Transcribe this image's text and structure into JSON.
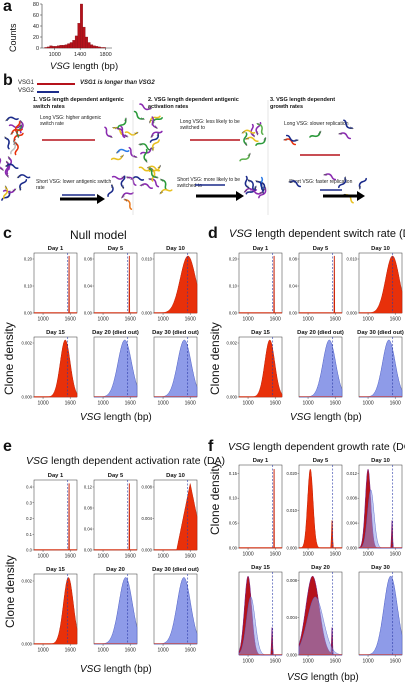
{
  "panels": {
    "a": {
      "letter": "a",
      "ylabel": "Counts",
      "xlabel_italic": "VSG",
      "xlabel_rest": " length (bp)"
    },
    "b": {
      "letter": "b",
      "legend1": "VSG1",
      "legend2": "VSG2",
      "legend_note": "VSG1 is longer than VSG2",
      "step1_title": "1. VSG length dependent antigenic switch rates",
      "step1_top": "Long VSG: higher antigenic switch rate",
      "step1_bottom": "Short VSG: lower antigenic switch rate",
      "step2_title": "2. VSG length dependent antigenic activation rates",
      "step2_top": "Long VSG: less likely to be switched to",
      "step2_bottom": "Short VSG: more likely to be switched to",
      "step3_title": "3. VSG length dependent growth rates",
      "step3_top": "Long VSG: slower replication",
      "step3_bottom": "Short VSG: faster replication"
    },
    "c": {
      "letter": "c",
      "title": "Null model"
    },
    "d": {
      "letter": "d",
      "title_italic": "VSG",
      "title_rest": " length dependent switch rate (DS)"
    },
    "e": {
      "letter": "e",
      "title_italic": "VSG",
      "title_rest": " length dependent activation rate (DA)"
    },
    "f": {
      "letter": "f",
      "title_italic": "VSG",
      "title_rest": " length dependent growth rate (DG)"
    },
    "common": {
      "ylabel": "Clone density",
      "xlabel_italic": "VSG",
      "xlabel_rest": " length (bp)"
    }
  },
  "colors": {
    "red": "#e8300a",
    "darkred": "#b5121b",
    "blue": "#8e9be8",
    "blue_edge": "#4a5bc4",
    "navy": "#1a2a8a",
    "purple": "#6b1a8a"
  },
  "chart_data": [
    {
      "panel": "a",
      "type": "bar",
      "title": "",
      "xlabel": "VSG length (bp)",
      "ylabel": "Counts",
      "x_ticks": [
        1000,
        1400,
        1800
      ],
      "y_ticks": [
        0,
        20,
        40,
        60,
        80
      ],
      "xlim": [
        800,
        1900
      ],
      "ylim": [
        0,
        80
      ],
      "bin_width": 40,
      "bins_start": [
        840,
        880,
        920,
        960,
        1000,
        1040,
        1080,
        1120,
        1160,
        1200,
        1240,
        1280,
        1320,
        1360,
        1400,
        1440,
        1480,
        1520,
        1560,
        1600,
        1640,
        1680,
        1720,
        1760
      ],
      "values": [
        1,
        2,
        4,
        3,
        3,
        4,
        5,
        5,
        6,
        8,
        10,
        14,
        22,
        45,
        80,
        38,
        20,
        10,
        6,
        4,
        3,
        2,
        1,
        1
      ]
    },
    {
      "panel": "c",
      "type": "area",
      "title": "Null model",
      "ylabel": "Clone density",
      "xlabel": "VSG length (bp)",
      "subplots": [
        {
          "label": "Day 1",
          "color": "red",
          "kind": "spike",
          "center": 1575,
          "ylim": [
            0,
            0.2
          ],
          "yticks": [
            "0.00",
            "0.10",
            "0.20"
          ],
          "dash_x": 1545
        },
        {
          "label": "Day 5",
          "color": "red",
          "kind": "spike",
          "center": 1580,
          "ylim": [
            0,
            0.08
          ],
          "yticks": [
            "0.00",
            "0.04",
            "0.08"
          ],
          "dash_x": 1545
        },
        {
          "label": "Day 10",
          "color": "red",
          "kind": "bell",
          "center": 1550,
          "width": 170,
          "ylim": [
            0,
            0.012
          ],
          "yticks": [
            "0.000",
            "0.010"
          ],
          "dash_x": 1545
        },
        {
          "label": "Day 15",
          "color": "red",
          "kind": "bell",
          "center": 1490,
          "width": 110,
          "ylim": [
            0,
            0.0035
          ],
          "yticks": [
            "0.000",
            "0.002"
          ],
          "dash_x": 1545
        },
        {
          "label": "Day 20 (died out)",
          "color": "blue",
          "kind": "bell",
          "center": 1480,
          "width": 150,
          "ylim": [
            0,
            0.0035
          ],
          "yticks": [],
          "dash_x": 1545
        },
        {
          "label": "Day 30 (died out)",
          "color": "blue",
          "kind": "bell",
          "center": 1470,
          "width": 150,
          "ylim": [
            0,
            0.0035
          ],
          "yticks": [],
          "dash_x": 1545
        }
      ]
    },
    {
      "panel": "d",
      "type": "area",
      "title": "VSG length dependent switch rate (DS)",
      "ylabel": "Clone density",
      "xlabel": "VSG length (bp)",
      "subplots": [
        {
          "label": "Day 1",
          "color": "red",
          "kind": "spike",
          "center": 1575,
          "ylim": [
            0,
            0.2
          ],
          "yticks": [
            "0.00",
            "0.10",
            "0.20"
          ],
          "dash_x": 1545
        },
        {
          "label": "Day 5",
          "color": "red",
          "kind": "spike",
          "center": 1580,
          "ylim": [
            0,
            0.08
          ],
          "yticks": [
            "0.00",
            "0.04",
            "0.08"
          ],
          "dash_x": 1545
        },
        {
          "label": "Day 10",
          "color": "red",
          "kind": "bell",
          "center": 1540,
          "width": 150,
          "ylim": [
            0,
            0.012
          ],
          "yticks": [
            "0.000",
            "0.010"
          ],
          "dash_x": 1545
        },
        {
          "label": "Day 15",
          "color": "red",
          "kind": "bell",
          "center": 1480,
          "width": 110,
          "ylim": [
            0,
            0.0035
          ],
          "yticks": [
            "0.000",
            "0.002"
          ],
          "dash_x": 1545
        },
        {
          "label": "Day 20 (died out)",
          "color": "blue",
          "kind": "bell",
          "center": 1470,
          "width": 140,
          "ylim": [
            0,
            0.0035
          ],
          "yticks": [],
          "dash_x": 1545
        },
        {
          "label": "Day 30 (died out)",
          "color": "blue",
          "kind": "bell",
          "center": 1460,
          "width": 140,
          "ylim": [
            0,
            0.0035
          ],
          "yticks": [],
          "dash_x": 1545
        }
      ]
    },
    {
      "panel": "e",
      "type": "area",
      "title": "VSG length dependent activation rate (DA)",
      "ylabel": "Clone density",
      "xlabel": "VSG length (bp)",
      "subplots": [
        {
          "label": "Day 1",
          "color": "red",
          "kind": "spike",
          "center": 1575,
          "ylim": [
            0,
            0.4
          ],
          "yticks": [
            "0.0",
            "0.1",
            "0.2",
            "0.3",
            "0.4"
          ],
          "dash_x": 1545
        },
        {
          "label": "Day 5",
          "color": "red",
          "kind": "spike",
          "center": 1580,
          "ylim": [
            0,
            0.12
          ],
          "yticks": [
            "0.00",
            "0.04",
            "0.08",
            "0.12"
          ],
          "dash_x": 1545
        },
        {
          "label": "Day 10",
          "color": "red",
          "kind": "tri",
          "center": 1600,
          "width": 300,
          "ylim": [
            0,
            0.012
          ],
          "yticks": [
            "0.000",
            "0.004",
            "0.008"
          ],
          "dash_x": 1545
        },
        {
          "label": "Day 15",
          "color": "red",
          "kind": "bell",
          "center": 1560,
          "width": 110,
          "ylim": [
            0,
            0.0035
          ],
          "yticks": [
            "0.000",
            "0.002"
          ],
          "dash_x": 1545
        },
        {
          "label": "Day 20",
          "color": "blue",
          "kind": "bell",
          "center": 1500,
          "width": 150,
          "ylim": [
            0,
            0.0035
          ],
          "yticks": [],
          "dash_x": 1545
        },
        {
          "label": "Day 30 (died out)",
          "color": "blue",
          "kind": "bell",
          "center": 1460,
          "width": 150,
          "ylim": [
            0,
            0.0035
          ],
          "yticks": [],
          "dash_x": 1545
        }
      ]
    },
    {
      "panel": "f",
      "type": "area",
      "title": "VSG length dependent growth rate (DG)",
      "ylabel": "Clone density",
      "xlabel": "VSG length (bp)",
      "subplots": [
        {
          "label": "Day 1",
          "color": "red",
          "kind": "spike",
          "center": 1575,
          "ylim": [
            0,
            0.15
          ],
          "yticks": [
            "0.00",
            "0.05",
            "0.10",
            "0.15"
          ],
          "dash_x": 1545
        },
        {
          "label": "Day 5",
          "color": "red",
          "kind": "left",
          "center": 1050,
          "width": 60,
          "ylim": [
            0,
            0.02
          ],
          "yticks": [
            "0.000",
            "0.010",
            "0.020"
          ],
          "dash_x": 1545
        },
        {
          "label": "Day 10",
          "color": "mixed",
          "kind": "left",
          "center": 1000,
          "width": 60,
          "ylim": [
            0,
            0.012
          ],
          "yticks": [
            "0.000",
            "0.004",
            "0.008",
            "0.012"
          ],
          "dash_x": 1545
        },
        {
          "label": "Day 15",
          "color": "mixed",
          "kind": "left",
          "center": 1000,
          "width": 80,
          "ylim": [
            0,
            0.0035
          ],
          "yticks": [],
          "dash_x": 1545
        },
        {
          "label": "Day 20",
          "color": "mixed",
          "kind": "left",
          "center": 1100,
          "width": 150,
          "ylim": [
            0,
            0.01
          ],
          "yticks": [
            "0.000",
            "0.004",
            "0.008"
          ],
          "dash_x": 1545
        },
        {
          "label": "Day 30",
          "color": "blue",
          "kind": "bell",
          "center": 1500,
          "width": 150,
          "ylim": [
            0,
            0.0035
          ],
          "yticks": [],
          "dash_x": 1545
        }
      ]
    }
  ]
}
